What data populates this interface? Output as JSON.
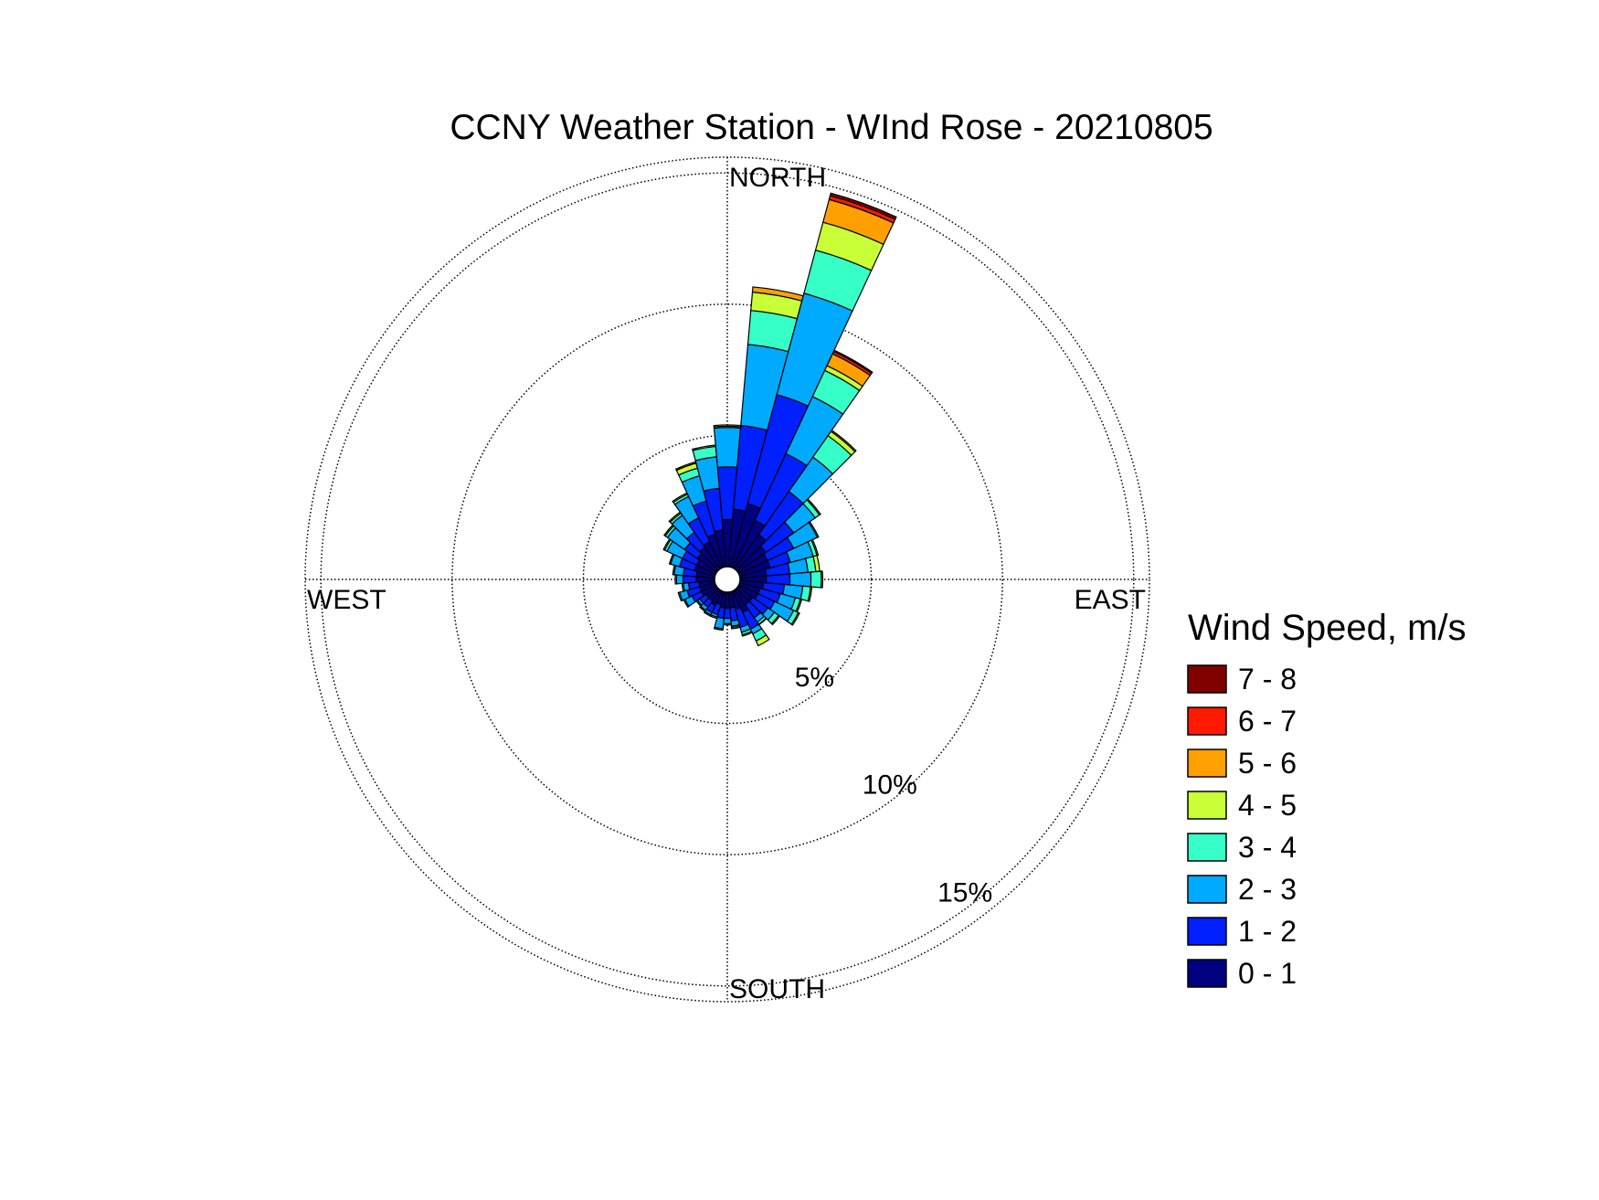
{
  "chart_data": {
    "type": "wind_rose",
    "title": "CCNY Weather Station - WInd Rose - 20210805",
    "direction_labels": {
      "north": "NORTH",
      "east": "EAST",
      "south": "SOUTH",
      "west": "WEST"
    },
    "radial_ticks": [
      {
        "value": 5,
        "label": "5%"
      },
      {
        "value": 10,
        "label": "10%"
      },
      {
        "value": 15,
        "label": "15%"
      }
    ],
    "radial_max": 15.6,
    "sector_width_deg": 10,
    "legend": {
      "title": "Wind Speed, m/s",
      "bins": [
        {
          "label": "7 - 8",
          "color": "#800000"
        },
        {
          "label": "6 - 7",
          "color": "#FF1A00"
        },
        {
          "label": "5 - 6",
          "color": "#FFA000"
        },
        {
          "label": "4 - 5",
          "color": "#C8FF37"
        },
        {
          "label": "3 - 4",
          "color": "#37FFC8"
        },
        {
          "label": "2 - 3",
          "color": "#00AAFF"
        },
        {
          "label": "1 - 2",
          "color": "#0020FF"
        },
        {
          "label": "0 - 1",
          "color": "#000080"
        }
      ]
    },
    "bin_order_inner_to_outer": [
      "0 - 1",
      "1 - 2",
      "2 - 3",
      "3 - 4",
      "4 - 5",
      "5 - 6",
      "6 - 7",
      "7 - 8"
    ],
    "sectors": [
      {
        "direction": 0,
        "cumulative": [
          1.8,
          3.8,
          5.3,
          5.35,
          5.4,
          5.4,
          5.4,
          5.4
        ]
      },
      {
        "direction": 10,
        "cumulative": [
          2.2,
          5.4,
          8.5,
          9.8,
          10.5,
          10.7,
          10.7,
          10.7
        ]
      },
      {
        "direction": 20,
        "cumulative": [
          2.5,
          6.8,
          10.8,
          12.5,
          13.6,
          14.5,
          14.65,
          14.75
        ]
      },
      {
        "direction": 30,
        "cumulative": [
          2.0,
          4.8,
          7.2,
          8.3,
          8.5,
          9.0,
          9.1,
          9.15
        ]
      },
      {
        "direction": 40,
        "cumulative": [
          1.6,
          3.6,
          5.2,
          6.2,
          6.4,
          6.45,
          6.45,
          6.45
        ]
      },
      {
        "direction": 50,
        "cumulative": [
          1.3,
          2.6,
          3.6,
          3.8,
          3.85,
          3.85,
          3.85,
          3.85
        ]
      },
      {
        "direction": 60,
        "cumulative": [
          1.2,
          2.3,
          3.3,
          3.35,
          3.35,
          3.35,
          3.35,
          3.35
        ]
      },
      {
        "direction": 70,
        "cumulative": [
          1.2,
          2.0,
          2.9,
          3.05,
          3.1,
          3.1,
          3.1,
          3.1
        ]
      },
      {
        "direction": 80,
        "cumulative": [
          1.0,
          1.9,
          2.6,
          2.9,
          3.05,
          3.05,
          3.05,
          3.05
        ]
      },
      {
        "direction": 90,
        "cumulative": [
          1.0,
          1.9,
          2.7,
          3.1,
          3.15,
          3.15,
          3.15,
          3.15
        ]
      },
      {
        "direction": 100,
        "cumulative": [
          0.9,
          1.7,
          2.4,
          2.7,
          2.75,
          2.75,
          2.75,
          2.75
        ]
      },
      {
        "direction": 110,
        "cumulative": [
          0.8,
          1.6,
          2.2,
          2.4,
          2.45,
          2.45,
          2.45,
          2.45
        ]
      },
      {
        "direction": 120,
        "cumulative": [
          0.8,
          1.5,
          2.3,
          2.5,
          2.55,
          2.55,
          2.55,
          2.55
        ]
      },
      {
        "direction": 130,
        "cumulative": [
          0.7,
          1.4,
          1.7,
          1.9,
          1.95,
          1.95,
          1.95,
          1.95
        ]
      },
      {
        "direction": 140,
        "cumulative": [
          0.7,
          1.3,
          1.5,
          1.6,
          1.62,
          1.62,
          1.62,
          1.62
        ]
      },
      {
        "direction": 150,
        "cumulative": [
          0.9,
          1.6,
          1.8,
          2.1,
          2.3,
          2.3,
          2.3,
          2.3
        ]
      },
      {
        "direction": 160,
        "cumulative": [
          0.7,
          1.4,
          1.6,
          1.7,
          1.75,
          1.75,
          1.75,
          1.75
        ]
      },
      {
        "direction": 170,
        "cumulative": [
          0.6,
          1.1,
          1.3,
          1.35,
          1.4,
          1.4,
          1.4,
          1.4
        ]
      },
      {
        "direction": 180,
        "cumulative": [
          0.6,
          1.0,
          1.2,
          1.25,
          1.25,
          1.25,
          1.25,
          1.25
        ]
      },
      {
        "direction": 190,
        "cumulative": [
          0.6,
          1.0,
          1.4,
          1.45,
          1.45,
          1.45,
          1.45,
          1.45
        ]
      },
      {
        "direction": 200,
        "cumulative": [
          0.5,
          0.9,
          1.0,
          1.05,
          1.05,
          1.05,
          1.05,
          1.05
        ]
      },
      {
        "direction": 210,
        "cumulative": [
          0.6,
          0.9,
          1.0,
          1.05,
          1.05,
          1.05,
          1.05,
          1.05
        ]
      },
      {
        "direction": 220,
        "cumulative": [
          0.5,
          0.8,
          0.95,
          1.0,
          1.0,
          1.0,
          1.0,
          1.0
        ]
      },
      {
        "direction": 230,
        "cumulative": [
          0.5,
          0.8,
          0.9,
          0.95,
          0.95,
          0.95,
          0.95,
          0.95
        ]
      },
      {
        "direction": 240,
        "cumulative": [
          0.6,
          1.0,
          1.3,
          1.35,
          1.35,
          1.35,
          1.35,
          1.35
        ]
      },
      {
        "direction": 250,
        "cumulative": [
          0.6,
          1.1,
          1.4,
          1.45,
          1.45,
          1.45,
          1.45,
          1.45
        ]
      },
      {
        "direction": 260,
        "cumulative": [
          0.6,
          1.0,
          1.2,
          1.25,
          1.25,
          1.25,
          1.25,
          1.25
        ]
      },
      {
        "direction": 270,
        "cumulative": [
          0.7,
          1.2,
          1.45,
          1.5,
          1.5,
          1.5,
          1.5,
          1.5
        ]
      },
      {
        "direction": 280,
        "cumulative": [
          0.7,
          1.2,
          1.55,
          1.6,
          1.6,
          1.6,
          1.6,
          1.6
        ]
      },
      {
        "direction": 290,
        "cumulative": [
          0.8,
          1.4,
          1.75,
          1.8,
          1.8,
          1.8,
          1.8,
          1.8
        ]
      },
      {
        "direction": 300,
        "cumulative": [
          0.8,
          1.4,
          2.05,
          2.15,
          2.2,
          2.2,
          2.2,
          2.2
        ]
      },
      {
        "direction": 310,
        "cumulative": [
          0.9,
          1.5,
          2.3,
          2.4,
          2.45,
          2.45,
          2.45,
          2.45
        ]
      },
      {
        "direction": 320,
        "cumulative": [
          1.0,
          1.7,
          2.5,
          2.6,
          2.65,
          2.65,
          2.65,
          2.65
        ]
      },
      {
        "direction": 330,
        "cumulative": [
          1.1,
          2.1,
          3.0,
          3.1,
          3.15,
          3.15,
          3.15,
          3.15
        ]
      },
      {
        "direction": 340,
        "cumulative": [
          1.3,
          2.6,
          3.6,
          3.9,
          4.1,
          4.15,
          4.15,
          4.15
        ]
      },
      {
        "direction": 350,
        "cumulative": [
          1.4,
          3.0,
          4.2,
          4.6,
          4.65,
          4.65,
          4.65,
          4.65
        ]
      }
    ],
    "grid": true
  }
}
